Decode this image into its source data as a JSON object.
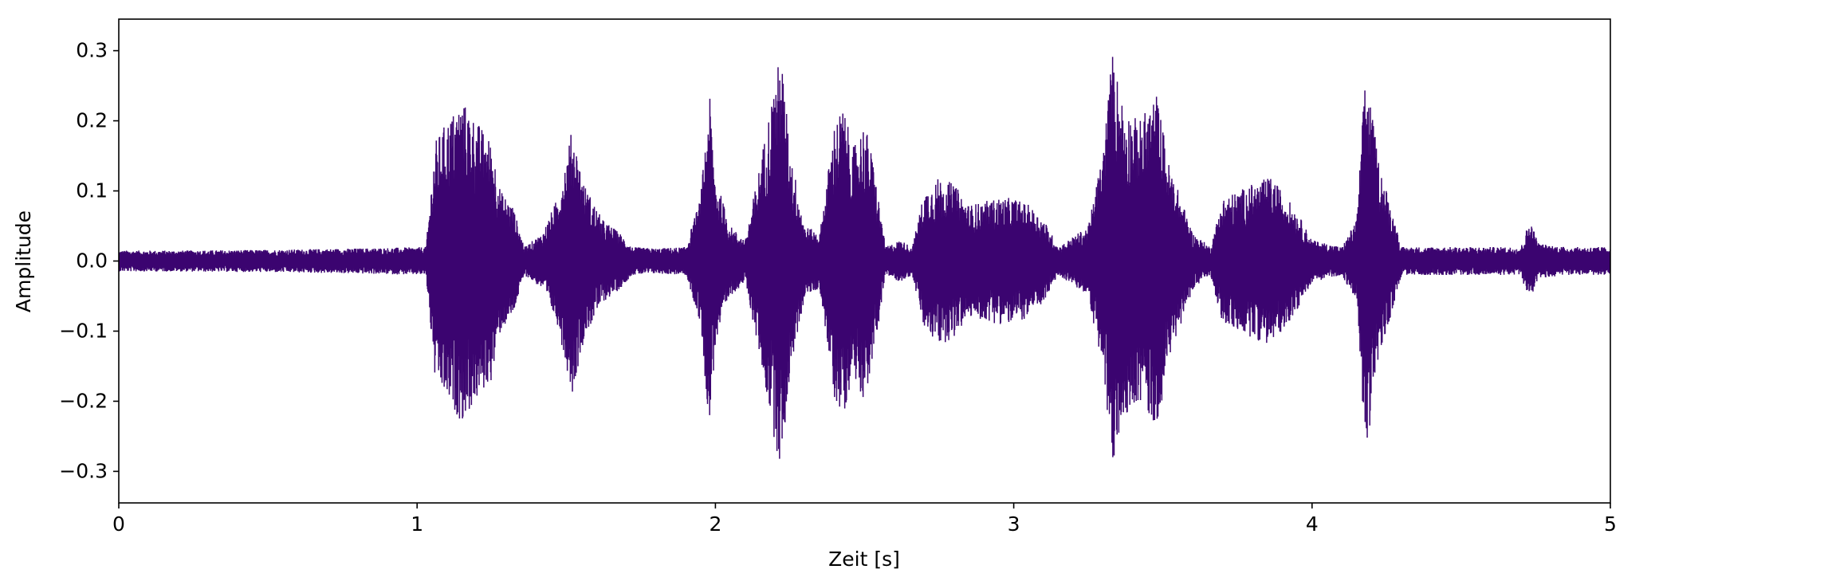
{
  "chart_data": {
    "type": "line",
    "title": "",
    "xlabel": "Zeit [s]",
    "ylabel": "Amplitude",
    "xlim": [
      0,
      5
    ],
    "ylim": [
      -0.345,
      0.345
    ],
    "x_ticks": [
      0,
      1,
      2,
      3,
      4,
      5
    ],
    "x_tick_labels": [
      "0",
      "1",
      "2",
      "3",
      "4",
      "5"
    ],
    "y_ticks": [
      -0.3,
      -0.2,
      -0.1,
      0.0,
      0.1,
      0.2,
      0.3
    ],
    "y_tick_labels": [
      "−0.3",
      "−0.2",
      "−0.1",
      "0.0",
      "0.1",
      "0.2",
      "0.3"
    ],
    "grid": false,
    "legend": "none",
    "line_color": "#3b0470",
    "series": [
      {
        "envelope": {
          "t": [
            0.0,
            0.2,
            0.5,
            0.8,
            1.03,
            1.06,
            1.1,
            1.15,
            1.2,
            1.25,
            1.28,
            1.32,
            1.36,
            1.42,
            1.47,
            1.52,
            1.56,
            1.62,
            1.68,
            1.72,
            1.8,
            1.9,
            1.95,
            1.98,
            2.0,
            2.05,
            2.1,
            2.15,
            2.2,
            2.22,
            2.25,
            2.3,
            2.35,
            2.4,
            2.43,
            2.46,
            2.5,
            2.53,
            2.57,
            2.62,
            2.66,
            2.7,
            2.75,
            2.8,
            2.85,
            2.9,
            2.95,
            3.0,
            3.05,
            3.1,
            3.15,
            3.25,
            3.3,
            3.33,
            3.37,
            3.42,
            3.48,
            3.52,
            3.6,
            3.66,
            3.7,
            3.75,
            3.8,
            3.86,
            3.9,
            3.95,
            4.0,
            4.1,
            4.15,
            4.18,
            4.22,
            4.3,
            4.5,
            4.7,
            4.73,
            4.76,
            4.85,
            5.0
          ],
          "amp": [
            0.015,
            0.015,
            0.016,
            0.018,
            0.02,
            0.17,
            0.2,
            0.23,
            0.2,
            0.17,
            0.1,
            0.08,
            0.02,
            0.04,
            0.09,
            0.19,
            0.11,
            0.06,
            0.04,
            0.02,
            0.018,
            0.02,
            0.09,
            0.24,
            0.12,
            0.05,
            0.03,
            0.14,
            0.26,
            0.3,
            0.16,
            0.05,
            0.04,
            0.2,
            0.22,
            0.16,
            0.2,
            0.14,
            0.02,
            0.03,
            0.02,
            0.1,
            0.12,
            0.11,
            0.08,
            0.085,
            0.09,
            0.09,
            0.08,
            0.06,
            0.02,
            0.05,
            0.16,
            0.3,
            0.22,
            0.2,
            0.24,
            0.14,
            0.04,
            0.02,
            0.09,
            0.1,
            0.11,
            0.12,
            0.1,
            0.07,
            0.03,
            0.02,
            0.06,
            0.28,
            0.15,
            0.02,
            0.02,
            0.02,
            0.06,
            0.025,
            0.02,
            0.02
          ]
        }
      }
    ]
  }
}
